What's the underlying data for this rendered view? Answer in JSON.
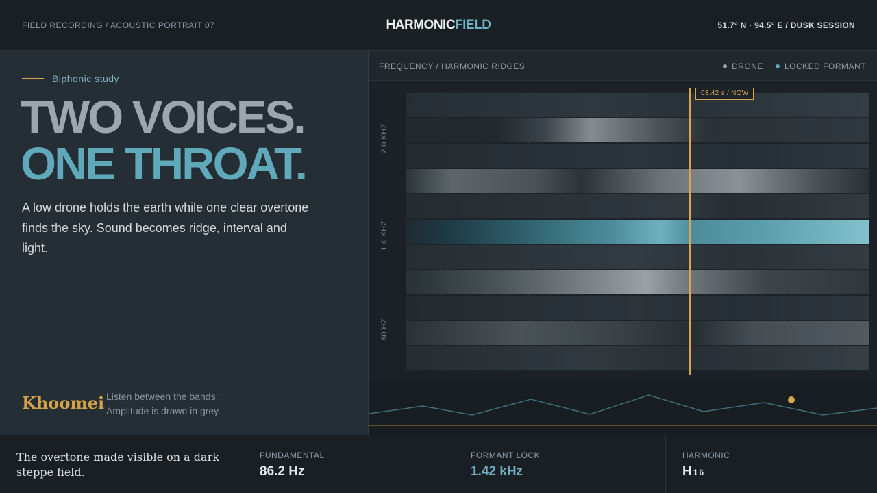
{
  "header": {
    "left_text": "FIELD RECORDING / ACOUSTIC PORTRAIT 07",
    "logo_part1": "HARMONIC",
    "logo_part2": "FIELD",
    "right_text": "51.7° N · 94.5° E / DUSK SESSION"
  },
  "hero": {
    "eyebrow": "Biphonic study",
    "headline_line1": "TWO VOICES.",
    "headline_line2": "ONE THROAT.",
    "lede": "A low drone holds the earth while one clear overtone finds the sky. Sound becomes ridge, interval and light.",
    "signature": "Khoomei",
    "note_line1": "Listen between the bands.",
    "note_line2": "Amplitude is drawn in grey."
  },
  "panel": {
    "title": "FREQUENCY / HARMONIC RIDGES",
    "legend": [
      {
        "label": "DRONE",
        "color": "#9aa7ae"
      },
      {
        "label": "LOCKED FORMANT",
        "color": "#5fa9bb"
      }
    ],
    "y_labels": [
      "2.0 KHZ",
      "1.0 KHZ",
      "80 HZ"
    ],
    "playhead_label": "03.42 s / NOW"
  },
  "colors": {
    "accent": "#5fa9bb",
    "gold": "#d6a74a",
    "grey": "#9aa7ae"
  },
  "footer": {
    "caption": "The overtone made visible on a dark steppe field.",
    "stats": [
      {
        "label": "FUNDAMENTAL",
        "value": "86.2 Hz",
        "sub": ""
      },
      {
        "label": "FORMANT LOCK",
        "value": "1.42 kHz",
        "sub": ""
      },
      {
        "label": "HARMONIC",
        "value": "H",
        "sub": "16"
      }
    ]
  }
}
